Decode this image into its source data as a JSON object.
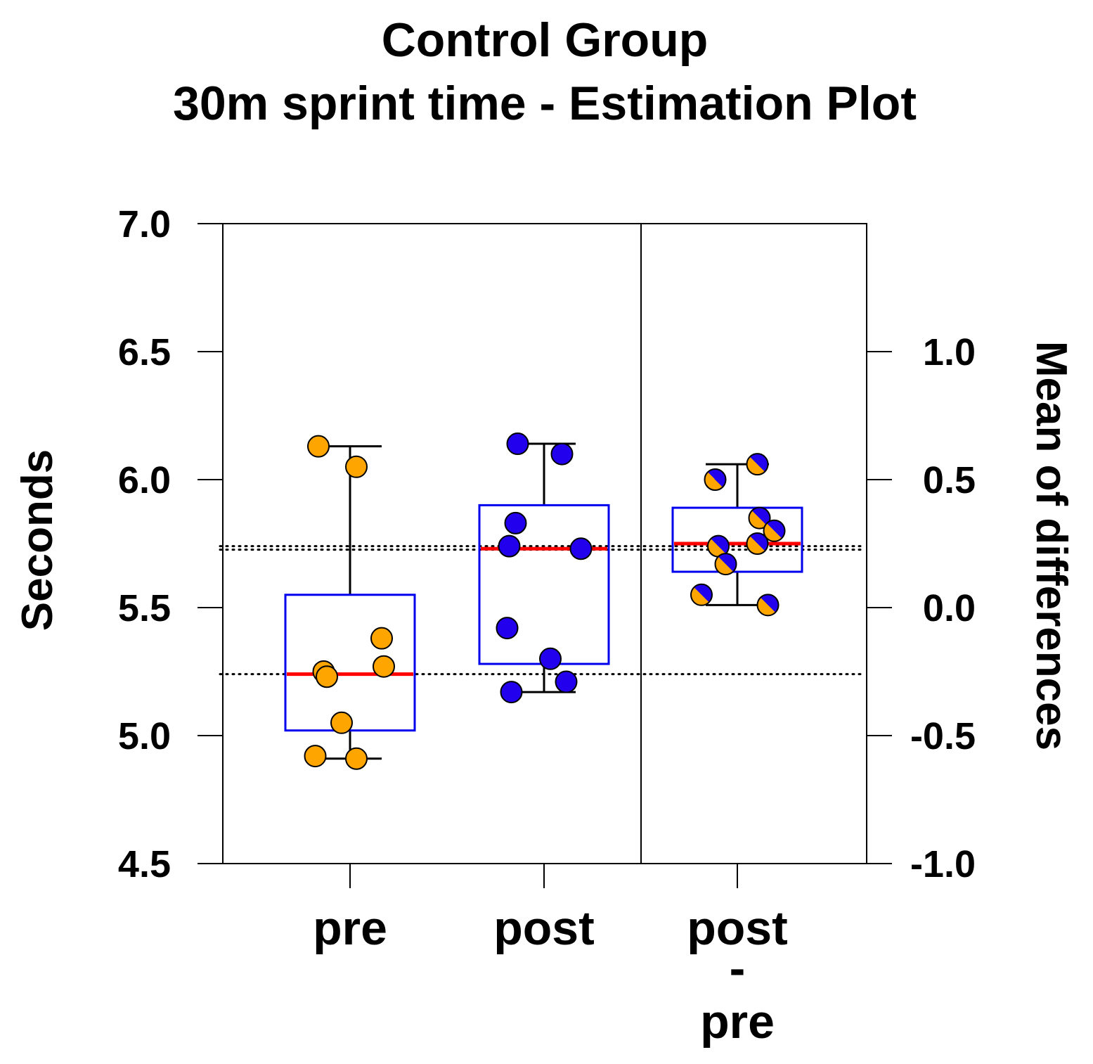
{
  "chart_data": {
    "type": "estimation-boxplot",
    "title_lines": [
      "Control Group",
      "30m sprint time - Estimation Plot"
    ],
    "ylabel_left": "Seconds",
    "ylabel_right": "Mean of differences",
    "ylim_left": [
      4.5,
      7.0
    ],
    "yticks_left": [
      "7.0",
      "6.5",
      "6.0",
      "5.5",
      "5.0",
      "4.5"
    ],
    "ylim_right": [
      -1.0,
      1.5
    ],
    "yticks_right": [
      "1.0",
      "0.5",
      "0.0",
      "-0.5",
      "-1.0"
    ],
    "categories": [
      "pre",
      "post",
      "post\n-\npre"
    ],
    "category_lines": [
      [
        "pre"
      ],
      [
        "post"
      ],
      [
        "post",
        "-",
        "pre"
      ]
    ],
    "reference_lines": [
      {
        "axis": "left",
        "value": 5.24,
        "style": "dotted"
      },
      {
        "axis": "left",
        "value": 5.74,
        "style": "dotted"
      }
    ],
    "colors": {
      "pre": "#FFA500",
      "post": "#2200EE",
      "box": "#0000EE",
      "median": "#FF0000"
    },
    "groups": [
      {
        "name": "pre",
        "axis": "left",
        "box": {
          "q1": 5.02,
          "median": 5.24,
          "q3": 5.55,
          "whisker_low": 4.91,
          "whisker_high": 6.13
        },
        "points": [
          {
            "jitter": -0.3,
            "value": 6.13
          },
          {
            "jitter": 0.06,
            "value": 6.05
          },
          {
            "jitter": 0.3,
            "value": 5.38
          },
          {
            "jitter": 0.32,
            "value": 5.27
          },
          {
            "jitter": -0.25,
            "value": 5.25
          },
          {
            "jitter": -0.22,
            "value": 5.23
          },
          {
            "jitter": -0.08,
            "value": 5.05
          },
          {
            "jitter": -0.33,
            "value": 4.92
          },
          {
            "jitter": 0.06,
            "value": 4.91
          }
        ]
      },
      {
        "name": "post",
        "axis": "left",
        "box": {
          "q1": 5.28,
          "median": 5.73,
          "q3": 5.9,
          "whisker_low": 5.17,
          "whisker_high": 6.14
        },
        "points": [
          {
            "jitter": -0.25,
            "value": 6.14
          },
          {
            "jitter": 0.17,
            "value": 6.1
          },
          {
            "jitter": -0.27,
            "value": 5.83
          },
          {
            "jitter": -0.33,
            "value": 5.74
          },
          {
            "jitter": 0.35,
            "value": 5.73
          },
          {
            "jitter": -0.35,
            "value": 5.42
          },
          {
            "jitter": 0.06,
            "value": 5.3
          },
          {
            "jitter": 0.21,
            "value": 5.21
          },
          {
            "jitter": -0.31,
            "value": 5.17
          }
        ]
      },
      {
        "name": "post - pre",
        "axis": "right",
        "box": {
          "q1": 0.14,
          "median": 0.25,
          "q3": 0.39,
          "whisker_low": 0.01,
          "whisker_high": 0.56
        },
        "points": [
          {
            "jitter": 0.19,
            "value": 0.56
          },
          {
            "jitter": -0.21,
            "value": 0.5
          },
          {
            "jitter": 0.21,
            "value": 0.35
          },
          {
            "jitter": 0.35,
            "value": 0.3
          },
          {
            "jitter": -0.18,
            "value": 0.24
          },
          {
            "jitter": 0.19,
            "value": 0.25
          },
          {
            "jitter": -0.11,
            "value": 0.17
          },
          {
            "jitter": -0.34,
            "value": 0.05
          },
          {
            "jitter": 0.29,
            "value": 0.01
          }
        ]
      }
    ]
  }
}
